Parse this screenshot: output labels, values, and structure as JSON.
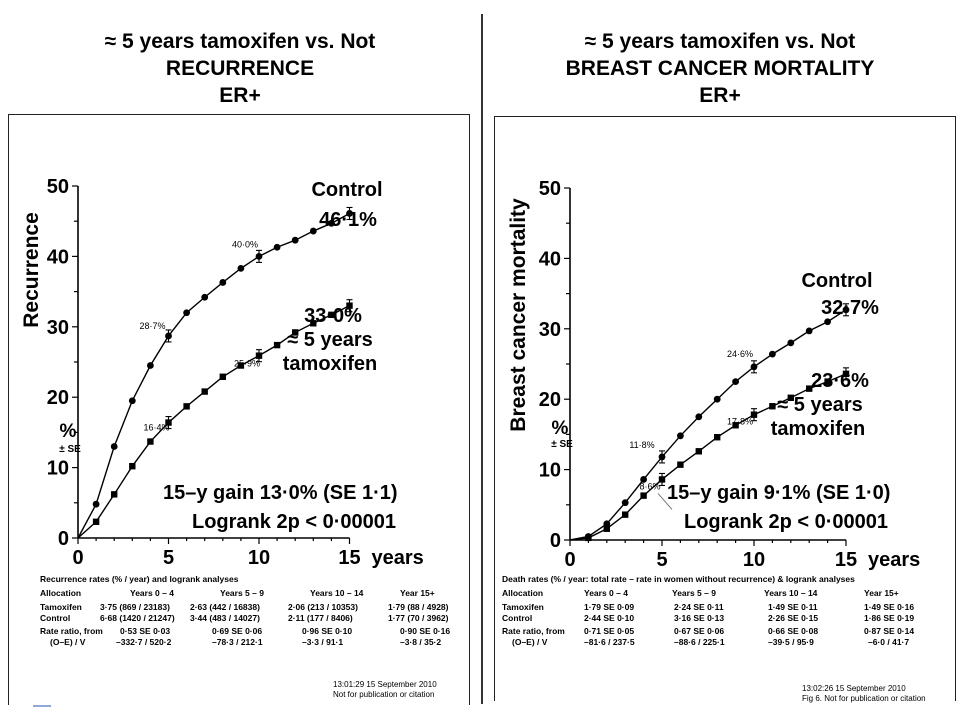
{
  "chart_data": [
    {
      "type": "line",
      "title": [
        "≈ 5 years tamoxifen vs. Not",
        "RECURRENCE",
        "ER+"
      ],
      "ylabel": "Recurrence",
      "ylabel_pct": "%",
      "ylabel_se": "± SE",
      "xlabel": "years",
      "xlim": [
        0,
        15
      ],
      "ylim": [
        0,
        50
      ],
      "xticks": [
        "0",
        "5",
        "10",
        "15"
      ],
      "yticks": [
        "0",
        "10",
        "20",
        "30",
        "40",
        "50"
      ],
      "series": [
        {
          "name": "Control",
          "marker": "circle",
          "x": [
            0,
            1,
            2,
            3,
            4,
            5,
            6,
            7,
            8,
            9,
            10,
            11,
            12,
            13,
            14,
            15
          ],
          "y": [
            0,
            4.8,
            13,
            19.5,
            24.5,
            28.7,
            32,
            34.2,
            36.3,
            38.3,
            40,
            41.3,
            42.3,
            43.6,
            44.7,
            46.1
          ]
        },
        {
          "name": "≈ 5 years tamoxifen",
          "marker": "square",
          "x": [
            0,
            1,
            2,
            3,
            4,
            5,
            6,
            7,
            8,
            9,
            10,
            11,
            12,
            13,
            14,
            15
          ],
          "y": [
            0,
            2.3,
            6.2,
            10.2,
            13.7,
            16.4,
            18.7,
            20.8,
            22.9,
            24.5,
            25.9,
            27.4,
            29.2,
            30.5,
            31.7,
            33.0
          ]
        }
      ],
      "point_labels": [
        {
          "text": "28·7%",
          "x": 5,
          "series": 0
        },
        {
          "text": "40·0%",
          "x": 10,
          "series": 0
        },
        {
          "text": "16·4%",
          "x": 5,
          "series": 1
        },
        {
          "text": "25·9%",
          "x": 10,
          "series": 1
        }
      ],
      "annotations": {
        "control_label": "Control",
        "control_value": "46·1%",
        "tam_value": "33·0%",
        "tam_label1": "≈ 5 years",
        "tam_label2": "tamoxifen",
        "gain_text": "15–y gain 13·0% (SE 1·1)",
        "logrank_text": "Logrank 2p < 0·00001"
      },
      "table": {
        "caption": "Recurrence rates (% / year) and logrank analyses",
        "headers": [
          "Allocation",
          "Years 0 – 4",
          "Years 5 – 9",
          "Years 10 – 14",
          "Year 15+"
        ],
        "rows": [
          [
            "Tamoxifen",
            "3·75 (869 / 23183)",
            "2·63 (442 / 16838)",
            "2·06 (213 / 10353)",
            "1·79 (88 / 4928)"
          ],
          [
            "Control",
            "6·68 (1420 / 21247)",
            "3·44 (483 / 14027)",
            "2·11 (177 / 8406)",
            "1·77 (70 / 3962)"
          ],
          [
            "Rate ratio, from",
            "0·53 SE 0·03",
            "0·69 SE 0·06",
            "0·96 SE 0·10",
            "0·90 SE 0·16"
          ],
          [
            "(O–E) / V",
            "–332·7 / 520·2",
            "–78·3 / 212·1",
            "–3·3 / 91·1",
            "–3·8 / 35·2"
          ]
        ]
      },
      "stamp": [
        "13:01:29   15 September 2010",
        "Not for publication or citation"
      ]
    },
    {
      "type": "line",
      "title": [
        "≈ 5 years tamoxifen vs. Not",
        "BREAST CANCER MORTALITY",
        "ER+"
      ],
      "ylabel": "Breast cancer mortality",
      "ylabel_pct": "%",
      "ylabel_se": "± SE",
      "xlabel": "years",
      "xlim": [
        0,
        15
      ],
      "ylim": [
        0,
        50
      ],
      "xticks": [
        "0",
        "5",
        "10",
        "15"
      ],
      "yticks": [
        "0",
        "10",
        "20",
        "30",
        "40",
        "50"
      ],
      "series": [
        {
          "name": "Control",
          "marker": "circle",
          "x": [
            0,
            1,
            2,
            3,
            4,
            5,
            6,
            7,
            8,
            9,
            10,
            11,
            12,
            13,
            14,
            15
          ],
          "y": [
            0,
            0.5,
            2.3,
            5.3,
            8.6,
            11.8,
            14.8,
            17.5,
            20.0,
            22.5,
            24.6,
            26.4,
            28.0,
            29.7,
            31.0,
            32.7
          ]
        },
        {
          "name": "≈ 5 years tamoxifen",
          "marker": "square",
          "x": [
            0,
            1,
            2,
            3,
            4,
            5,
            6,
            7,
            8,
            9,
            10,
            11,
            12,
            13,
            14,
            15
          ],
          "y": [
            0,
            0.3,
            1.6,
            3.6,
            6.3,
            8.6,
            10.7,
            12.6,
            14.6,
            16.3,
            17.8,
            19.0,
            20.2,
            21.5,
            22.5,
            23.6
          ]
        }
      ],
      "point_labels": [
        {
          "text": "11·8%",
          "x": 5,
          "series": 0
        },
        {
          "text": "24·6%",
          "x": 10,
          "series": 0
        },
        {
          "text": "8·6%",
          "x": 5,
          "series": 1
        },
        {
          "text": "17·8%",
          "x": 10,
          "series": 1
        }
      ],
      "annotations": {
        "control_label": "Control",
        "control_value": "32·7%",
        "tam_value": "23·6%",
        "tam_label1": "≈ 5 years",
        "tam_label2": "tamoxifen",
        "gain_text": "15–y gain 9·1% (SE 1·0)",
        "logrank_text": "Logrank 2p < 0·00001"
      },
      "table": {
        "caption": "Death rates (% / year: total rate – rate in women without recurrence) & logrank analyses",
        "headers": [
          "Allocation",
          "Years 0 – 4",
          "Years 5 – 9",
          "Years 10 – 14",
          "Year 15+"
        ],
        "rows": [
          [
            "Tamoxifen",
            "1·79 SE 0·09",
            "2·24 SE 0·11",
            "1·49 SE 0·11",
            "1·49 SE 0·16"
          ],
          [
            "Control",
            "2·44 SE 0·10",
            "3·16 SE 0·13",
            "2·26 SE 0·15",
            "1·86 SE 0·19"
          ],
          [
            "Rate ratio, from",
            "0·71 SE 0·05",
            "0·67 SE 0·06",
            "0·66 SE 0·08",
            "0·87 SE 0·14"
          ],
          [
            "(O–E) / V",
            "–81·6 / 237·5",
            "–88·6 / 225·1",
            "–39·5 / 95·9",
            "–6·0 / 41·7"
          ]
        ]
      },
      "stamp": [
        "13:02:26   15 September 2010",
        "Fig 6. Not for publication or citation"
      ]
    }
  ]
}
